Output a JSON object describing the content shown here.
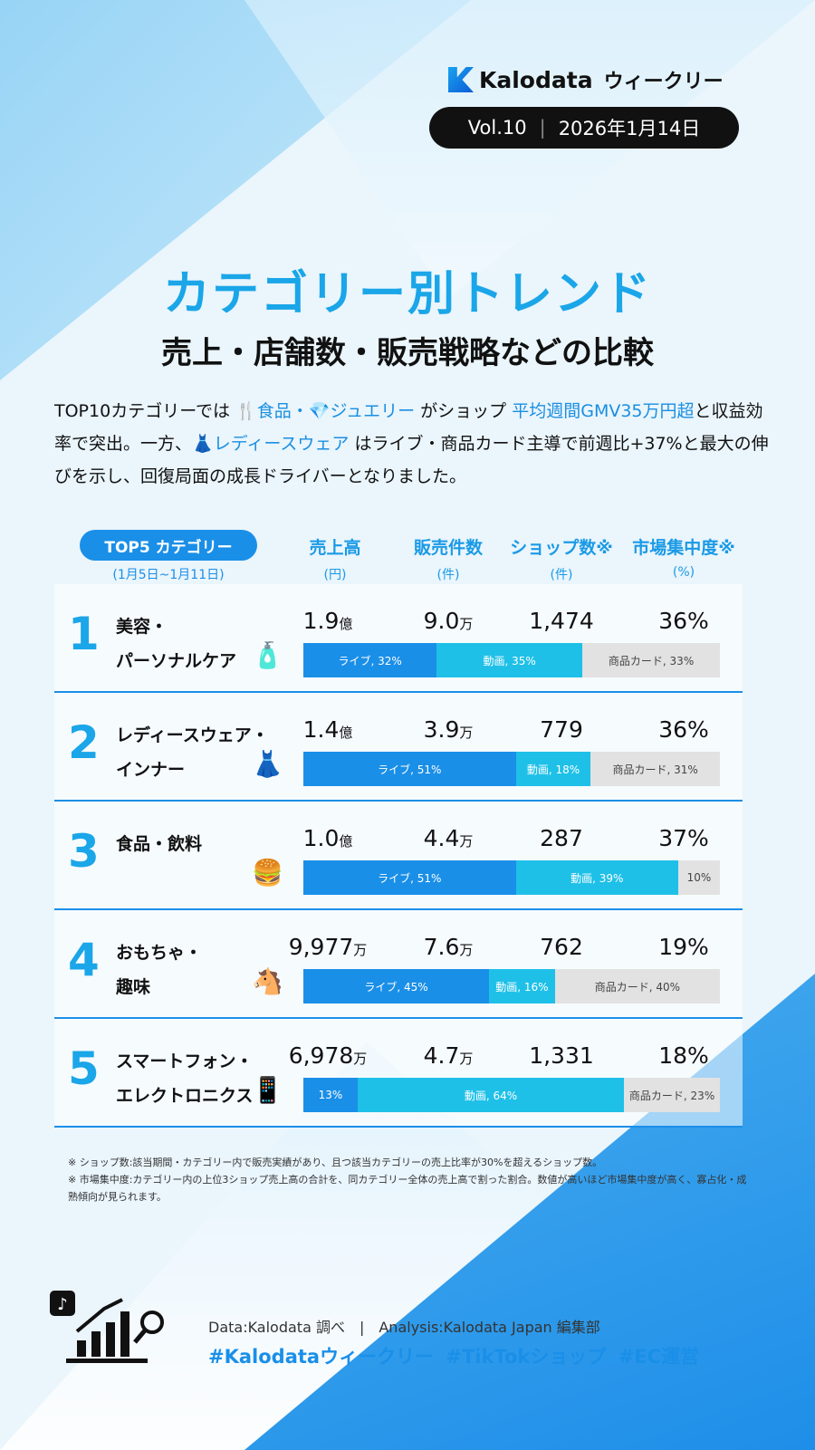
{
  "header": {
    "brand": "Kalodata",
    "brand_suffix": "ウィークリー",
    "vol": "Vol.10",
    "date": "2026年1月14日"
  },
  "title": "カテゴリー別トレンド",
  "subtitle": "売上・店舗数・販売戦略などの比較",
  "intro": {
    "p1": "TOP10カテゴリーでは ",
    "hl1": "食品・",
    "hl1b": "ジュエリー",
    "p2": " がショップ ",
    "hl2": "平均週間GMV35万円超",
    "p3": "と収益効率で突出。一方、",
    "hl3": "レディースウェア",
    "p4": " はライブ・商品カード主導で前週比+37%と最大の伸びを示し、回復局面の成長ドライバーとなりました。"
  },
  "table": {
    "badge": "TOP5 カテゴリー",
    "period": "(1月5日~1月11日)",
    "columns": [
      {
        "label": "売上高",
        "unit": "(円)"
      },
      {
        "label": "販売件数",
        "unit": "(件)"
      },
      {
        "label": "ショップ数※",
        "unit": "(件)"
      },
      {
        "label": "市場集中度※",
        "unit": "(%)"
      }
    ],
    "rows": [
      {
        "rank": "1",
        "name1": "美容・",
        "name2": "パーソナルケア",
        "icon": "cosmetics-icon",
        "sales": "1.9",
        "sales_unit": "億",
        "orders": "9.0",
        "orders_unit": "万",
        "shops": "1,474",
        "conc": "36%",
        "mix": [
          {
            "label": "ライブ, 32%",
            "pct": 32
          },
          {
            "label": "動画, 35%",
            "pct": 35
          },
          {
            "label": "商品カード, 33%",
            "pct": 33
          }
        ]
      },
      {
        "rank": "2",
        "name1": "レディースウェア・",
        "name2": "インナー",
        "icon": "dress-icon",
        "sales": "1.4",
        "sales_unit": "億",
        "orders": "3.9",
        "orders_unit": "万",
        "shops": "779",
        "conc": "36%",
        "mix": [
          {
            "label": "ライブ, 51%",
            "pct": 51
          },
          {
            "label": "動画, 18%",
            "pct": 18
          },
          {
            "label": "商品カード, 31%",
            "pct": 31
          }
        ]
      },
      {
        "rank": "3",
        "name1": "食品・飲料",
        "name2": "",
        "icon": "food-drink-icon",
        "sales": "1.0",
        "sales_unit": "億",
        "orders": "4.4",
        "orders_unit": "万",
        "shops": "287",
        "conc": "37%",
        "mix": [
          {
            "label": "ライブ, 51%",
            "pct": 51
          },
          {
            "label": "動画, 39%",
            "pct": 39
          },
          {
            "label": "10%",
            "pct": 10
          }
        ]
      },
      {
        "rank": "4",
        "name1": "おもちゃ・",
        "name2": "趣味",
        "icon": "rocking-horse-icon",
        "sales": "9,977",
        "sales_unit": "万",
        "orders": "7.6",
        "orders_unit": "万",
        "shops": "762",
        "conc": "19%",
        "mix": [
          {
            "label": "ライブ, 45%",
            "pct": 45
          },
          {
            "label": "動画, 16%",
            "pct": 16
          },
          {
            "label": "商品カード, 40%",
            "pct": 40
          }
        ]
      },
      {
        "rank": "5",
        "name1": "スマートフォン・",
        "name2": "エレクトロニクス",
        "icon": "smartphone-icon",
        "sales": "6,978",
        "sales_unit": "万",
        "orders": "4.7",
        "orders_unit": "万",
        "shops": "1,331",
        "conc": "18%",
        "mix": [
          {
            "label": "13%",
            "pct": 13
          },
          {
            "label": "動画, 64%",
            "pct": 64
          },
          {
            "label": "商品カード, 23%",
            "pct": 23
          }
        ]
      }
    ]
  },
  "colors": {
    "live": "#1a8fe8",
    "video": "#1fc0e8",
    "card": "#e2e2e2",
    "accent": "#1aa6e8"
  },
  "notes": [
    "※ ショップ数:該当期間・カテゴリー内で販売実績があり、且つ該当カテゴリーの売上比率が30%を超えるショップ数。",
    "※ 市場集中度:カテゴリー内の上位3ショップ売上高の合計を、同カテゴリー全体の売上高で割った割合。数値が高いほど市場集中度が高く、寡占化・成熟傾向が見られます。"
  ],
  "footer": {
    "data": "Data:Kalodata 調べ　|　Analysis:Kalodata Japan 編集部",
    "tags": "#Kalodataウィークリー #TikTokショップ #EC運営"
  }
}
